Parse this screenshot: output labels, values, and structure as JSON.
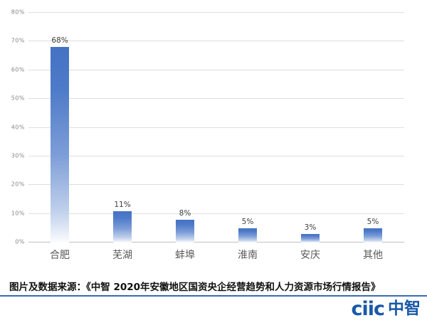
{
  "source_note": {
    "text": "图片及数据来源：《中智 2020年安徽地区国资央企经营趋势和人力资源市场行情报告》"
  },
  "logo": {
    "latin": "ciic",
    "cjk": "中智",
    "color": "#1959a8"
  },
  "colors": {
    "bar_top": "#4472c4",
    "bar_bottom": "#fbfcfe",
    "gridline": "#dedede",
    "axis_line": "#bfbfbf",
    "tick_label": "#858585",
    "value_label": "#3f3f3f",
    "category_label": "#595959",
    "rule": "#3a6bb5",
    "background": "#ffffff"
  },
  "chart_data": {
    "type": "bar",
    "categories": [
      "合肥",
      "芜湖",
      "蚌埠",
      "淮南",
      "安庆",
      "其他"
    ],
    "values": [
      68,
      11,
      8,
      5,
      3,
      5
    ],
    "value_labels": [
      "68%",
      "11%",
      "8%",
      "5%",
      "3%",
      "5%"
    ],
    "title": "",
    "xlabel": "",
    "ylabel": "",
    "ylim": [
      0,
      80
    ],
    "ytick_step": 10,
    "ytick_labels": [
      "0%",
      "10%",
      "20%",
      "30%",
      "40%",
      "50%",
      "60%",
      "70%",
      "80%"
    ],
    "grid": true,
    "legend": false
  }
}
